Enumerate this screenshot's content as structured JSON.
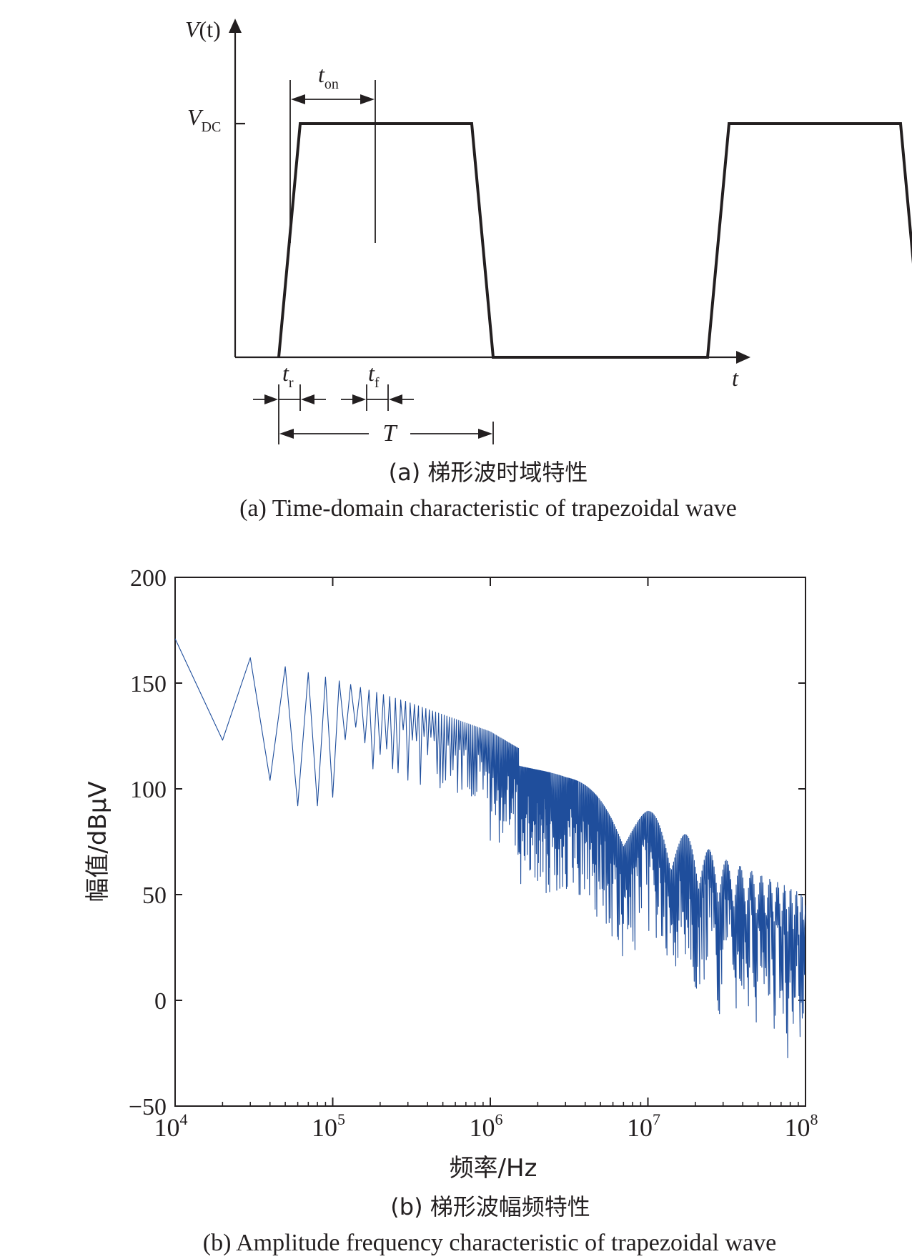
{
  "panel_a": {
    "y_axis_label_main": "V",
    "y_axis_label_arg": "(t)",
    "vdc_main": "V",
    "vdc_sub": "DC",
    "ton_main": "t",
    "ton_sub": "on",
    "x_axis_label": "t",
    "tr_main": "t",
    "tr_sub": "r",
    "tf_main": "t",
    "tf_sub": "f",
    "period_label": "T",
    "caption_cn": "(a) 梯形波时域特性",
    "caption_en": "(a) Time-domain characteristic of trapezoidal wave"
  },
  "panel_b": {
    "ylabel": "幅值/dBμV",
    "xlabel": "频率/Hz",
    "caption_cn": "(b) 梯形波幅频特性",
    "caption_en": "(b) Amplitude frequency characteristic of trapezoidal wave",
    "line_color": "#1f4e9c"
  },
  "chart_data": [
    {
      "type": "line",
      "title": "",
      "xlabel": "t",
      "ylabel": "V(t)",
      "x": [
        0.0,
        0.05,
        0.45,
        0.5,
        1.0,
        1.05,
        1.45,
        1.5
      ],
      "y": [
        0,
        1,
        1,
        0,
        0,
        1,
        1,
        0
      ],
      "annotations": [
        "t_on",
        "t_r",
        "t_f",
        "T",
        "V_DC"
      ]
    },
    {
      "type": "line",
      "title": "",
      "xlabel": "频率/Hz",
      "ylabel": "幅值/dBμV",
      "xscale": "log",
      "xlim": [
        10000,
        100000000
      ],
      "ylim": [
        -50,
        200
      ],
      "xticks": [
        {
          "base": "10",
          "exp": "4"
        },
        {
          "base": "10",
          "exp": "5"
        },
        {
          "base": "10",
          "exp": "6"
        },
        {
          "base": "10",
          "exp": "7"
        },
        {
          "base": "10",
          "exp": "8"
        }
      ],
      "yticks": [
        "200",
        "150",
        "100",
        "50",
        "0",
        "−50"
      ],
      "envelope_x": [
        10000,
        30000,
        100000,
        300000,
        1000000,
        3000000,
        10000000,
        30000000,
        100000000
      ],
      "envelope_y": [
        171,
        162,
        152,
        141,
        127,
        106,
        90,
        67,
        50
      ],
      "fundamental_hz": 20000,
      "null_dips_hz": [
        20000,
        40000,
        60000,
        100000,
        3500000,
        10000000
      ],
      "color": "#1f4e9c"
    }
  ]
}
